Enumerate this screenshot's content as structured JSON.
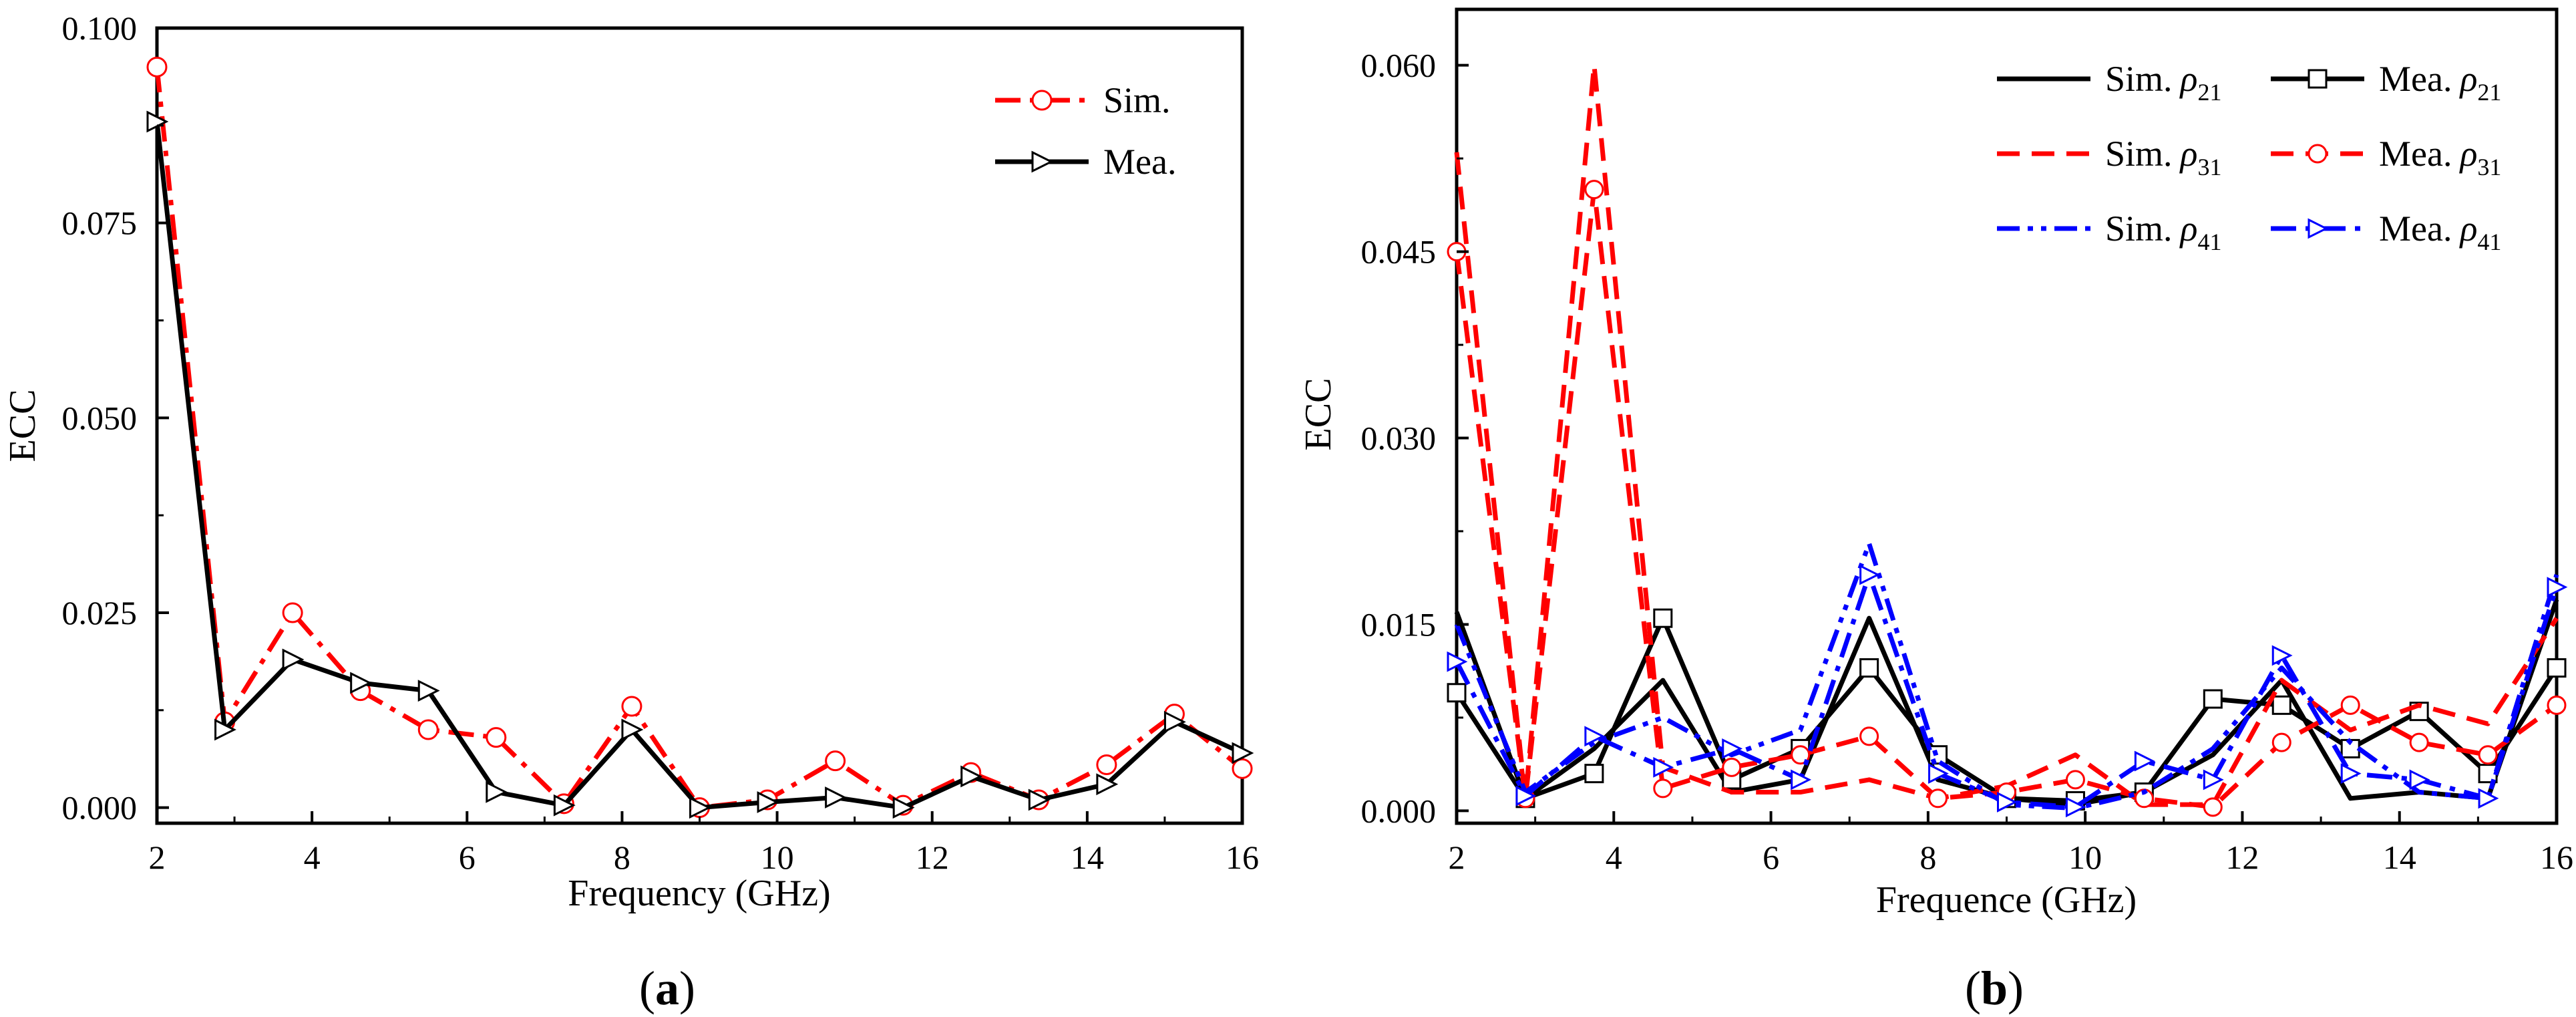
{
  "chart_data": [
    {
      "type": "line",
      "panel_label": "a",
      "xlabel": "Frequency (GHz)",
      "ylabel": "ECC",
      "xlim": [
        2,
        16
      ],
      "ylim": [
        -0.002,
        0.1
      ],
      "x_ticks": [
        2,
        4,
        6,
        8,
        10,
        12,
        14,
        16
      ],
      "x_tick_labels": [
        "2",
        "4",
        "6",
        "8",
        "10",
        "12",
        "14",
        "16"
      ],
      "y_ticks": [
        0,
        0.025,
        0.05,
        0.075,
        0.1
      ],
      "y_tick_labels": [
        "0.000",
        "0.025",
        "0.050",
        "0.075",
        "0.100"
      ],
      "legend_position": "top-right",
      "series": [
        {
          "name": "Sim.",
          "color": "#ff0000",
          "line_style": "dashdot",
          "marker": "circle",
          "x": [
            2.0,
            2.875,
            3.75,
            4.625,
            5.5,
            6.375,
            7.25,
            8.125,
            9.0,
            9.875,
            10.75,
            11.625,
            12.5,
            13.375,
            14.25,
            15.125,
            16.0
          ],
          "values": [
            0.095,
            0.011,
            0.025,
            0.015,
            0.01,
            0.009,
            0.0005,
            0.013,
            0.0,
            0.001,
            0.006,
            0.0003,
            0.0045,
            0.001,
            0.0055,
            0.012,
            0.005
          ]
        },
        {
          "name": "Mea.",
          "color": "#000000",
          "line_style": "solid",
          "marker": "triangle-right",
          "x": [
            2.0,
            2.875,
            3.75,
            4.625,
            5.5,
            6.375,
            7.25,
            8.125,
            9.0,
            9.875,
            10.75,
            11.625,
            12.5,
            13.375,
            14.25,
            15.125,
            16.0
          ],
          "values": [
            0.088,
            0.01,
            0.019,
            0.016,
            0.015,
            0.002,
            0.0003,
            0.01,
            0.0,
            0.0007,
            0.0013,
            0.0,
            0.004,
            0.001,
            0.003,
            0.011,
            0.007
          ]
        }
      ]
    },
    {
      "type": "line",
      "panel_label": "b",
      "xlabel": "Frequence (GHz)",
      "ylabel": "ECC",
      "xlim": [
        2,
        16
      ],
      "ylim": [
        -0.001,
        0.0645
      ],
      "x_ticks": [
        2,
        4,
        6,
        8,
        10,
        12,
        14,
        16
      ],
      "x_tick_labels": [
        "2",
        "4",
        "6",
        "8",
        "10",
        "12",
        "14",
        "16"
      ],
      "y_ticks": [
        0,
        0.015,
        0.03,
        0.045,
        0.06
      ],
      "y_tick_labels": [
        "0.000",
        "0.015",
        "0.030",
        "0.045",
        "0.060"
      ],
      "legend_position": "top-right",
      "series": [
        {
          "name": "Sim.",
          "symbol": "ρ",
          "subscript": "21",
          "color": "#000000",
          "line_style": "solid",
          "marker": "none",
          "x": [
            2.0,
            2.875,
            3.75,
            4.625,
            5.5,
            6.375,
            7.25,
            8.125,
            9.0,
            9.875,
            10.75,
            11.625,
            12.5,
            13.375,
            14.25,
            15.125,
            16.0
          ],
          "values": [
            0.016,
            0.001,
            0.005,
            0.0105,
            0.0015,
            0.0025,
            0.0155,
            0.0025,
            0.001,
            0.0005,
            0.0015,
            0.0045,
            0.0105,
            0.001,
            0.0015,
            0.001,
            0.017
          ]
        },
        {
          "name": "Mea.",
          "symbol": "ρ",
          "subscript": "21",
          "color": "#000000",
          "line_style": "solid",
          "marker": "square",
          "x": [
            2.0,
            2.875,
            3.75,
            4.625,
            5.5,
            6.375,
            7.25,
            8.125,
            9.0,
            9.875,
            10.75,
            11.625,
            12.5,
            13.375,
            14.25,
            15.125,
            16.0
          ],
          "values": [
            0.0095,
            0.001,
            0.003,
            0.0155,
            0.0025,
            0.005,
            0.0115,
            0.0045,
            0.001,
            0.0008,
            0.0015,
            0.009,
            0.0085,
            0.005,
            0.008,
            0.003,
            0.0115
          ]
        },
        {
          "name": "Sim.",
          "symbol": "ρ",
          "subscript": "31",
          "color": "#ff0000",
          "line_style": "dashed",
          "marker": "none",
          "x": [
            2.0,
            2.875,
            3.75,
            4.625,
            5.5,
            6.375,
            7.25,
            8.125,
            9.0,
            9.875,
            10.75,
            11.625,
            12.5,
            13.375,
            14.25,
            15.125,
            16.0
          ],
          "values": [
            0.053,
            0.001,
            0.06,
            0.0035,
            0.0015,
            0.0015,
            0.0025,
            0.001,
            0.002,
            0.0045,
            0.0005,
            0.0005,
            0.0105,
            0.0065,
            0.0085,
            0.007,
            0.0155
          ]
        },
        {
          "name": "Mea.",
          "symbol": "ρ",
          "subscript": "31",
          "color": "#ff0000",
          "line_style": "dashed",
          "marker": "circle",
          "x": [
            2.0,
            2.875,
            3.75,
            4.625,
            5.5,
            6.375,
            7.25,
            8.125,
            9.0,
            9.875,
            10.75,
            11.625,
            12.5,
            13.375,
            14.25,
            15.125,
            16.0
          ],
          "values": [
            0.045,
            0.001,
            0.05,
            0.0018,
            0.0035,
            0.0045,
            0.006,
            0.001,
            0.0015,
            0.0025,
            0.001,
            0.0003,
            0.0055,
            0.0085,
            0.0055,
            0.0045,
            0.0085
          ]
        },
        {
          "name": "Sim.",
          "symbol": "ρ",
          "subscript": "41",
          "color": "#0000ff",
          "line_style": "dashdotdot",
          "marker": "none",
          "x": [
            2.0,
            2.875,
            3.75,
            4.625,
            5.5,
            6.375,
            7.25,
            8.125,
            9.0,
            9.875,
            10.75,
            11.625,
            12.5,
            13.375,
            14.25,
            15.125,
            16.0
          ],
          "values": [
            0.015,
            0.0015,
            0.0055,
            0.0075,
            0.0045,
            0.0065,
            0.0215,
            0.004,
            0.0005,
            0.0002,
            0.0015,
            0.005,
            0.0115,
            0.0055,
            0.0015,
            0.001,
            0.019
          ]
        },
        {
          "name": "Mea.",
          "symbol": "ρ",
          "subscript": "41",
          "color": "#0000ff",
          "line_style": "dashdot",
          "marker": "triangle-right",
          "x": [
            2.0,
            2.875,
            3.75,
            4.625,
            5.5,
            6.375,
            7.25,
            8.125,
            9.0,
            9.875,
            10.75,
            11.625,
            12.5,
            13.375,
            14.25,
            15.125,
            16.0
          ],
          "values": [
            0.012,
            0.0012,
            0.006,
            0.0035,
            0.005,
            0.0025,
            0.019,
            0.003,
            0.0007,
            0.0003,
            0.004,
            0.0025,
            0.0125,
            0.003,
            0.0025,
            0.001,
            0.018
          ]
        }
      ]
    }
  ]
}
